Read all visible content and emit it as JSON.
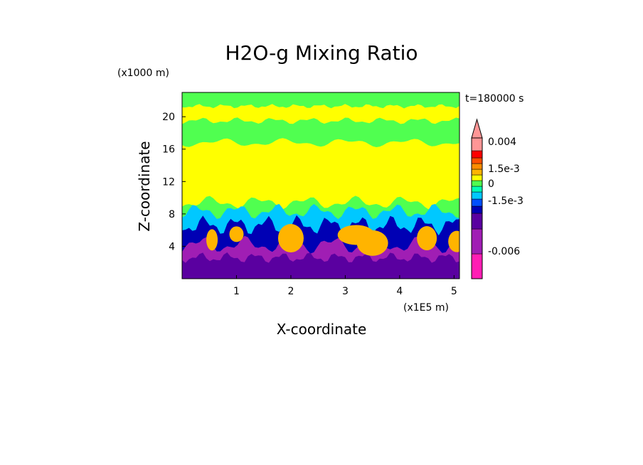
{
  "chart_data": {
    "type": "heatmap",
    "title": "H2O-g Mixing Ratio",
    "xlabel": "X-coordinate",
    "ylabel": "Z-coordinate",
    "x_unit": "(x1E5 m)",
    "y_unit": "(x1000 m)",
    "time_label": "t=180000 s",
    "xlim": [
      0,
      5.1
    ],
    "ylim": [
      0,
      23
    ],
    "x_ticks": [
      "1",
      "2",
      "3",
      "4",
      "5"
    ],
    "x_tick_values": [
      1,
      2,
      3,
      4,
      5
    ],
    "y_ticks": [
      "4",
      "8",
      "12",
      "16",
      "20"
    ],
    "y_tick_values": [
      4,
      8,
      12,
      16,
      20
    ],
    "colorbar": {
      "colors": [
        "#ff1eb4",
        "#a01eb4",
        "#5a00a0",
        "#0000b4",
        "#0050ff",
        "#00c8ff",
        "#00ffb4",
        "#50ff50",
        "#ffff00",
        "#ffb400",
        "#ff8c00",
        "#ff5000",
        "#ff0000",
        "#ff9696"
      ],
      "labels": [
        "0.004",
        "1.5e-3",
        "0",
        "-1.5e-3",
        "-0.006"
      ],
      "extend_top": true
    },
    "bands": [
      {
        "name": "base",
        "color": "#5a00a0"
      },
      {
        "name": "low-magenta",
        "color": "#a01eb4"
      },
      {
        "name": "blue-layer",
        "color": "#0000b4"
      },
      {
        "name": "cyan-layer",
        "color": "#00c8ff"
      },
      {
        "name": "green-layer",
        "color": "#50ff50"
      },
      {
        "name": "yellow-main",
        "color": "#ffff00"
      },
      {
        "name": "upper-green",
        "color": "#50ff50"
      },
      {
        "name": "top-yellow",
        "color": "#ffff00"
      },
      {
        "name": "orange-plumes",
        "color": "#ffb400"
      }
    ]
  }
}
